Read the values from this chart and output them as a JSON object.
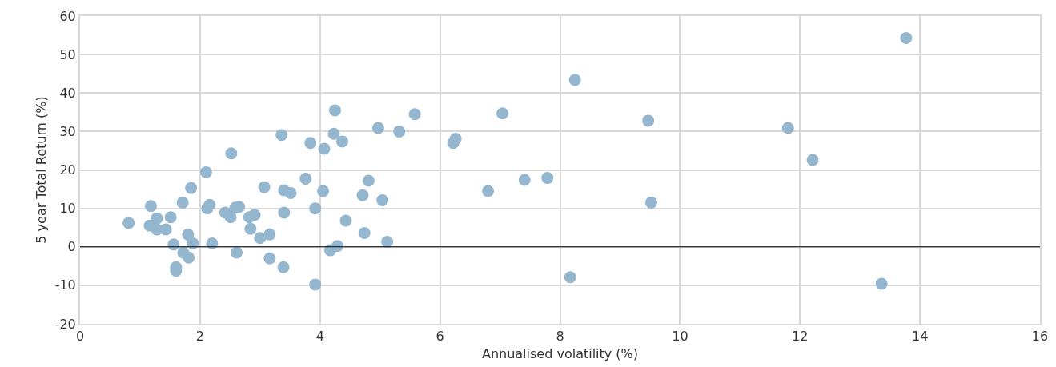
{
  "chart_data": {
    "type": "scatter",
    "xlabel": "Annualised volatility (%)",
    "ylabel": "5 year Total Return (%)",
    "x": [
      0.81,
      1.18,
      1.16,
      1.28,
      1.28,
      1.43,
      1.51,
      1.56,
      1.6,
      1.6,
      1.71,
      1.72,
      1.8,
      1.81,
      1.85,
      1.88,
      2.1,
      2.12,
      2.16,
      2.2,
      2.52,
      2.42,
      2.51,
      2.59,
      2.65,
      2.61,
      2.82,
      2.91,
      2.84,
      3.0,
      3.16,
      3.16,
      3.07,
      3.36,
      3.4,
      3.51,
      3.4,
      3.39,
      3.76,
      3.84,
      3.92,
      3.92,
      4.05,
      4.07,
      4.23,
      4.25,
      4.37,
      4.17,
      4.29,
      4.43,
      4.71,
      4.81,
      4.74,
      4.97,
      5.04,
      5.12,
      5.32,
      5.58,
      6.22,
      6.26,
      6.8,
      7.04,
      7.41,
      7.79,
      8.25,
      8.17,
      9.47,
      9.52,
      11.8,
      12.21,
      13.36,
      13.77
    ],
    "values": [
      6.2,
      10.6,
      5.5,
      7.4,
      4.5,
      4.5,
      7.7,
      0.6,
      -5.3,
      -6.2,
      11.5,
      -1.5,
      3.2,
      -2.8,
      15.3,
      0.9,
      19.4,
      10.0,
      10.9,
      0.9,
      24.3,
      8.9,
      7.7,
      10.2,
      10.4,
      -1.5,
      7.7,
      8.3,
      4.7,
      2.3,
      3.2,
      -3.0,
      15.5,
      29.1,
      14.7,
      14.0,
      8.9,
      -5.3,
      17.7,
      27.0,
      10.0,
      -9.8,
      14.5,
      25.5,
      29.4,
      35.5,
      27.4,
      -0.9,
      0.2,
      6.8,
      13.4,
      17.2,
      3.6,
      30.9,
      12.1,
      1.3,
      30.0,
      34.5,
      27.0,
      28.1,
      14.5,
      34.7,
      17.4,
      17.9,
      43.4,
      -7.9,
      32.8,
      11.5,
      30.9,
      22.6,
      -9.6,
      54.3
    ],
    "color": "#94b6cf",
    "marker": "circle",
    "grid": true,
    "xlim": [
      0,
      16
    ],
    "xticks": [
      0,
      2,
      4,
      6,
      8,
      10,
      12,
      14,
      16
    ],
    "ylim": [
      -20,
      60
    ],
    "yticks": [
      -20,
      -10,
      0,
      10,
      20,
      30,
      40,
      50,
      60
    ],
    "ref_lines": [
      {
        "axis": "y",
        "value": 0,
        "color": "#000000"
      }
    ]
  }
}
